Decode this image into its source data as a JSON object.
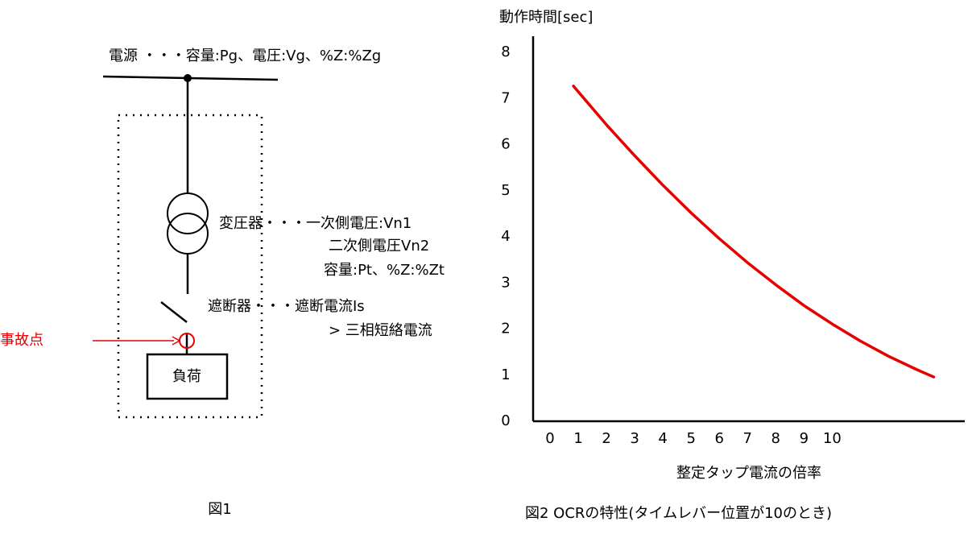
{
  "diagram": {
    "power_source": "電源 ・・・容量:Pg、電圧:Vg、%Z:%Zg",
    "transformer": [
      "変圧器・・・一次側電圧:Vn1",
      "二次側電圧Vn2",
      "容量:Pt、%Z:%Zt"
    ],
    "breaker": [
      "遮断器・・・遮断電流Is",
      "> 三相短絡電流"
    ],
    "fault_point": "事故点",
    "load": "負荷",
    "caption": "図1"
  },
  "chart_data": {
    "type": "line",
    "y_label": "動作時間[sec]",
    "x_label": "整定タップ電流の倍率",
    "caption": "図2 OCRの特性(タイムレバー位置が10のとき)",
    "x": [
      0.83,
      2,
      3,
      4,
      5,
      6,
      7,
      8,
      9,
      10,
      11,
      12,
      13,
      13.6
    ],
    "values": [
      7.27,
      6.43,
      5.76,
      5.12,
      4.52,
      3.96,
      3.44,
      2.96,
      2.51,
      2.11,
      1.74,
      1.41,
      1.12,
      0.96
    ],
    "color": "#e60000",
    "xlim": [
      -0.6,
      14.7
    ],
    "ylim": [
      0,
      8.35
    ],
    "xticks": [
      0,
      1,
      2,
      3,
      4,
      5,
      6,
      7,
      8,
      9,
      10
    ],
    "yticks": [
      0,
      1,
      2,
      3,
      4,
      5,
      6,
      7,
      8
    ],
    "grid": false
  }
}
